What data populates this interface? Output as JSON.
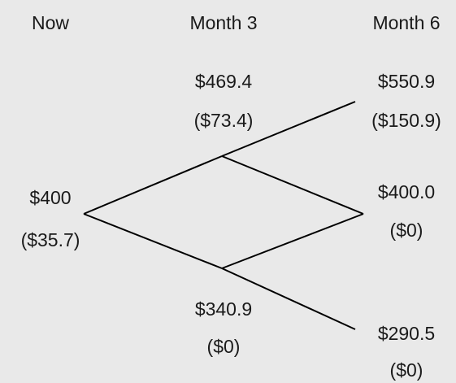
{
  "headers": [
    "Now",
    "Month 3",
    "Month 6"
  ],
  "nodes": [
    {
      "price": "$400",
      "option": "($35.7)"
    },
    {
      "price": "$469.4",
      "option": "($73.4)"
    },
    {
      "price": "$340.9",
      "option": "($0)"
    },
    {
      "price": "$550.9",
      "option": "($150.9)"
    },
    {
      "price": "$400.0",
      "option": "($0)"
    },
    {
      "price": "$290.5",
      "option": "($0)"
    }
  ]
}
